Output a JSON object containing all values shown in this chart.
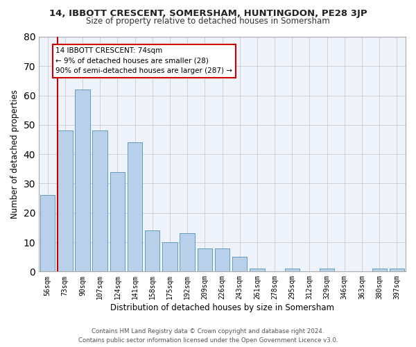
{
  "title1": "14, IBBOTT CRESCENT, SOMERSHAM, HUNTINGDON, PE28 3JP",
  "title2": "Size of property relative to detached houses in Somersham",
  "xlabel": "Distribution of detached houses by size in Somersham",
  "ylabel": "Number of detached properties",
  "categories": [
    "56sqm",
    "73sqm",
    "90sqm",
    "107sqm",
    "124sqm",
    "141sqm",
    "158sqm",
    "175sqm",
    "192sqm",
    "209sqm",
    "226sqm",
    "243sqm",
    "261sqm",
    "278sqm",
    "295sqm",
    "312sqm",
    "329sqm",
    "346sqm",
    "363sqm",
    "380sqm",
    "397sqm"
  ],
  "values": [
    26,
    48,
    62,
    48,
    34,
    44,
    14,
    10,
    13,
    8,
    8,
    5,
    1,
    0,
    1,
    0,
    1,
    0,
    0,
    1,
    1
  ],
  "bar_color": "#b8d0ea",
  "bar_edge_color": "#6699bb",
  "vline_x_index": 1,
  "annotation_line1": "14 IBBOTT CRESCENT: 74sqm",
  "annotation_line2": "← 9% of detached houses are smaller (28)",
  "annotation_line3": "90% of semi-detached houses are larger (287) →",
  "annotation_box_color": "#ffffff",
  "annotation_box_edge_color": "#cc0000",
  "vline_color": "#cc0000",
  "ylim": [
    0,
    80
  ],
  "yticks": [
    0,
    10,
    20,
    30,
    40,
    50,
    60,
    70,
    80
  ],
  "grid_color": "#cccccc",
  "background_color": "#eef2fb",
  "footer1": "Contains HM Land Registry data © Crown copyright and database right 2024.",
  "footer2": "Contains public sector information licensed under the Open Government Licence v3.0."
}
